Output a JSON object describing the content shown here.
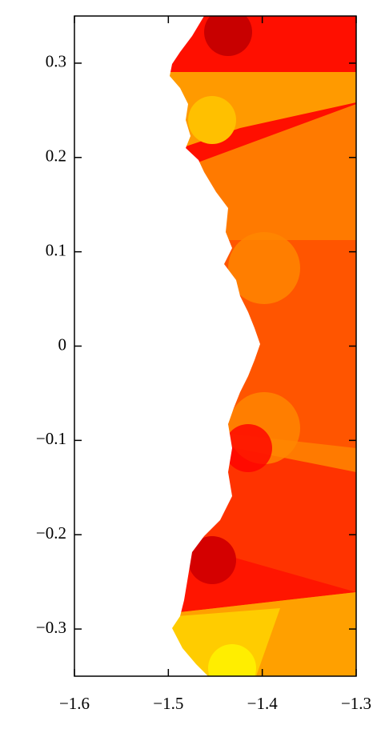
{
  "chart_data": {
    "type": "image",
    "xlim": [
      -1.6,
      -1.3
    ],
    "ylim": [
      -0.35,
      0.35
    ],
    "xticks": [
      {
        "value": -1.6,
        "label": "−1.6"
      },
      {
        "value": -1.5,
        "label": "−1.5"
      },
      {
        "value": -1.4,
        "label": "−1.4"
      },
      {
        "value": -1.3,
        "label": "−1.3"
      }
    ],
    "yticks": [
      {
        "value": -0.3,
        "label": "−0.3"
      },
      {
        "value": -0.2,
        "label": "−0.2"
      },
      {
        "value": -0.1,
        "label": "−0.1"
      },
      0,
      0.1,
      0.2,
      0.3
    ]
  }
}
